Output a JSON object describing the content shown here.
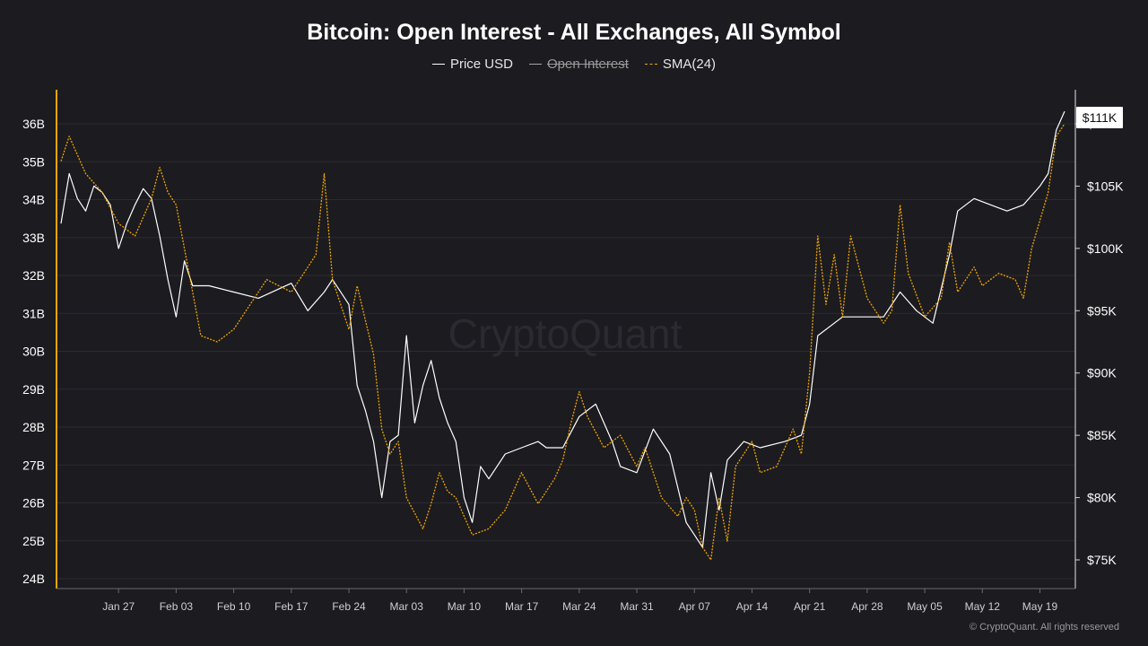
{
  "chart_data": {
    "type": "line",
    "title": "Bitcoin: Open Interest - All Exchanges, All Symbol",
    "legend_position": "top-center",
    "grid": true,
    "watermark": "CryptoQuant",
    "copyright": "© CryptoQuant. All rights reserved",
    "y_left": {
      "range": [
        24,
        36.5
      ],
      "ticks": [
        "24B",
        "25B",
        "26B",
        "27B",
        "28B",
        "29B",
        "30B",
        "31B",
        "32B",
        "33B",
        "34B",
        "35B",
        "36B"
      ],
      "accent_color": "#f0a500"
    },
    "y_right": {
      "range": [
        73000,
        113000
      ],
      "ticks": [
        "$75K",
        "$80K",
        "$85K",
        "$90K",
        "$95K",
        "$100K",
        "$105K",
        "$110K"
      ],
      "price_label": "$111K"
    },
    "x_ticks": [
      "Jan 27",
      "Feb 03",
      "Feb 10",
      "Feb 17",
      "Feb 24",
      "Mar 03",
      "Mar 10",
      "Mar 17",
      "Mar 24",
      "Mar 31",
      "Apr 07",
      "Apr 14",
      "Apr 21",
      "Apr 28",
      "May 05",
      "May 12",
      "May 19"
    ],
    "x_range": [
      "2025-01-20",
      "2025-05-22"
    ],
    "series": [
      {
        "name": "Price USD",
        "axis": "right",
        "color": "#ffffff",
        "style": "solid",
        "visible": true,
        "points": [
          [
            "2025-01-20",
            102000
          ],
          [
            "2025-01-21",
            106000
          ],
          [
            "2025-01-22",
            104000
          ],
          [
            "2025-01-23",
            103000
          ],
          [
            "2025-01-24",
            105000
          ],
          [
            "2025-01-25",
            104500
          ],
          [
            "2025-01-26",
            103500
          ],
          [
            "2025-01-27",
            100000
          ],
          [
            "2025-01-28",
            102000
          ],
          [
            "2025-01-29",
            103500
          ],
          [
            "2025-01-30",
            104800
          ],
          [
            "2025-01-31",
            104000
          ],
          [
            "2025-02-01",
            101000
          ],
          [
            "2025-02-02",
            97500
          ],
          [
            "2025-02-03",
            94500
          ],
          [
            "2025-02-04",
            99000
          ],
          [
            "2025-02-05",
            97000
          ],
          [
            "2025-02-07",
            97000
          ],
          [
            "2025-02-10",
            96500
          ],
          [
            "2025-02-13",
            96000
          ],
          [
            "2025-02-17",
            97200
          ],
          [
            "2025-02-19",
            95000
          ],
          [
            "2025-02-21",
            96500
          ],
          [
            "2025-02-22",
            97500
          ],
          [
            "2025-02-24",
            95500
          ],
          [
            "2025-02-25",
            89000
          ],
          [
            "2025-02-26",
            87000
          ],
          [
            "2025-02-27",
            84500
          ],
          [
            "2025-02-28",
            80000
          ],
          [
            "2025-03-01",
            84500
          ],
          [
            "2025-03-02",
            85000
          ],
          [
            "2025-03-03",
            93000
          ],
          [
            "2025-03-04",
            86000
          ],
          [
            "2025-03-05",
            89000
          ],
          [
            "2025-03-06",
            91000
          ],
          [
            "2025-03-07",
            88000
          ],
          [
            "2025-03-08",
            86000
          ],
          [
            "2025-03-09",
            84500
          ],
          [
            "2025-03-10",
            80000
          ],
          [
            "2025-03-11",
            78000
          ],
          [
            "2025-03-12",
            82500
          ],
          [
            "2025-03-13",
            81500
          ],
          [
            "2025-03-15",
            83500
          ],
          [
            "2025-03-17",
            84000
          ],
          [
            "2025-03-19",
            84500
          ],
          [
            "2025-03-20",
            84000
          ],
          [
            "2025-03-22",
            84000
          ],
          [
            "2025-03-24",
            86500
          ],
          [
            "2025-03-26",
            87500
          ],
          [
            "2025-03-28",
            84500
          ],
          [
            "2025-03-29",
            82500
          ],
          [
            "2025-03-31",
            82000
          ],
          [
            "2025-04-02",
            85500
          ],
          [
            "2025-04-04",
            83500
          ],
          [
            "2025-04-06",
            78000
          ],
          [
            "2025-04-07",
            77000
          ],
          [
            "2025-04-08",
            76000
          ],
          [
            "2025-04-09",
            82000
          ],
          [
            "2025-04-10",
            79000
          ],
          [
            "2025-04-11",
            83000
          ],
          [
            "2025-04-13",
            84500
          ],
          [
            "2025-04-15",
            84000
          ],
          [
            "2025-04-18",
            84500
          ],
          [
            "2025-04-20",
            85000
          ],
          [
            "2025-04-21",
            87500
          ],
          [
            "2025-04-22",
            93000
          ],
          [
            "2025-04-25",
            94500
          ],
          [
            "2025-04-28",
            94500
          ],
          [
            "2025-04-30",
            94500
          ],
          [
            "2025-05-02",
            96500
          ],
          [
            "2025-05-04",
            95000
          ],
          [
            "2025-05-06",
            94000
          ],
          [
            "2025-05-08",
            99500
          ],
          [
            "2025-05-09",
            103000
          ],
          [
            "2025-05-11",
            104000
          ],
          [
            "2025-05-13",
            103500
          ],
          [
            "2025-05-15",
            103000
          ],
          [
            "2025-05-17",
            103500
          ],
          [
            "2025-05-19",
            105000
          ],
          [
            "2025-05-20",
            106000
          ],
          [
            "2025-05-21",
            109500
          ],
          [
            "2025-05-22",
            111000
          ]
        ]
      },
      {
        "name": "Open Interest",
        "axis": "left",
        "color": "#a5a5a5",
        "style": "solid",
        "visible": false,
        "points": []
      },
      {
        "name": "SMA(24)",
        "axis": "right",
        "color": "#f0a500",
        "style": "dashed",
        "visible": true,
        "points": [
          [
            "2025-01-20",
            107000
          ],
          [
            "2025-01-21",
            109000
          ],
          [
            "2025-01-23",
            106000
          ],
          [
            "2025-01-25",
            104500
          ],
          [
            "2025-01-27",
            102000
          ],
          [
            "2025-01-29",
            101000
          ],
          [
            "2025-01-31",
            104000
          ],
          [
            "2025-02-01",
            106500
          ],
          [
            "2025-02-02",
            104500
          ],
          [
            "2025-02-03",
            103500
          ],
          [
            "2025-02-04",
            100000
          ],
          [
            "2025-02-05",
            96500
          ],
          [
            "2025-02-06",
            93000
          ],
          [
            "2025-02-08",
            92500
          ],
          [
            "2025-02-10",
            93500
          ],
          [
            "2025-02-12",
            95500
          ],
          [
            "2025-02-14",
            97500
          ],
          [
            "2025-02-17",
            96500
          ],
          [
            "2025-02-19",
            98500
          ],
          [
            "2025-02-20",
            99500
          ],
          [
            "2025-02-21",
            106000
          ],
          [
            "2025-02-22",
            97500
          ],
          [
            "2025-02-24",
            93500
          ],
          [
            "2025-02-25",
            97000
          ],
          [
            "2025-02-27",
            91500
          ],
          [
            "2025-02-28",
            85500
          ],
          [
            "2025-03-01",
            83500
          ],
          [
            "2025-03-02",
            84500
          ],
          [
            "2025-03-03",
            80000
          ],
          [
            "2025-03-05",
            77500
          ],
          [
            "2025-03-06",
            79500
          ],
          [
            "2025-03-07",
            82000
          ],
          [
            "2025-03-08",
            80500
          ],
          [
            "2025-03-09",
            80000
          ],
          [
            "2025-03-11",
            77000
          ],
          [
            "2025-03-13",
            77500
          ],
          [
            "2025-03-15",
            79000
          ],
          [
            "2025-03-17",
            82000
          ],
          [
            "2025-03-19",
            79500
          ],
          [
            "2025-03-21",
            81500
          ],
          [
            "2025-03-22",
            83000
          ],
          [
            "2025-03-23",
            86000
          ],
          [
            "2025-03-24",
            88500
          ],
          [
            "2025-03-25",
            86500
          ],
          [
            "2025-03-27",
            84000
          ],
          [
            "2025-03-29",
            85000
          ],
          [
            "2025-03-31",
            82500
          ],
          [
            "2025-04-01",
            84000
          ],
          [
            "2025-04-03",
            80000
          ],
          [
            "2025-04-05",
            78500
          ],
          [
            "2025-04-06",
            80000
          ],
          [
            "2025-04-07",
            79000
          ],
          [
            "2025-04-08",
            76000
          ],
          [
            "2025-04-09",
            75000
          ],
          [
            "2025-04-10",
            80000
          ],
          [
            "2025-04-11",
            76500
          ],
          [
            "2025-04-12",
            82500
          ],
          [
            "2025-04-14",
            84500
          ],
          [
            "2025-04-15",
            82000
          ],
          [
            "2025-04-17",
            82500
          ],
          [
            "2025-04-19",
            85500
          ],
          [
            "2025-04-20",
            83500
          ],
          [
            "2025-04-21",
            90000
          ],
          [
            "2025-04-22",
            101000
          ],
          [
            "2025-04-23",
            95500
          ],
          [
            "2025-04-24",
            99500
          ],
          [
            "2025-04-25",
            94500
          ],
          [
            "2025-04-26",
            101000
          ],
          [
            "2025-04-28",
            96000
          ],
          [
            "2025-04-30",
            94000
          ],
          [
            "2025-05-01",
            95000
          ],
          [
            "2025-05-02",
            103500
          ],
          [
            "2025-05-03",
            98000
          ],
          [
            "2025-05-05",
            94500
          ],
          [
            "2025-05-07",
            96000
          ],
          [
            "2025-05-08",
            100500
          ],
          [
            "2025-05-09",
            96500
          ],
          [
            "2025-05-11",
            98500
          ],
          [
            "2025-05-12",
            97000
          ],
          [
            "2025-05-14",
            98000
          ],
          [
            "2025-05-16",
            97500
          ],
          [
            "2025-05-17",
            96000
          ],
          [
            "2025-05-18",
            100000
          ],
          [
            "2025-05-20",
            104500
          ],
          [
            "2025-05-21",
            109000
          ],
          [
            "2025-05-22",
            110000
          ]
        ]
      }
    ]
  }
}
